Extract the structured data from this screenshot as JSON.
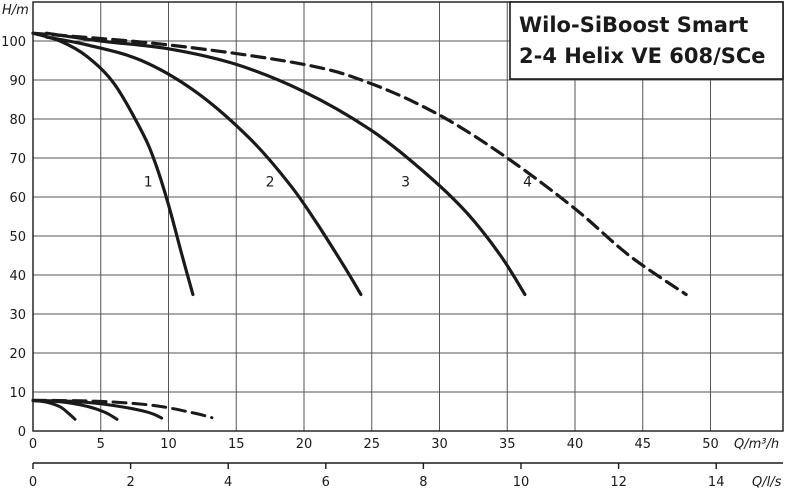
{
  "chart_data": {
    "type": "line",
    "title_lines": [
      "Wilo-SiBoost Smart",
      "2-4 Helix VE 608/SCe"
    ],
    "ylabel": "H/m",
    "xlabel": "Q/m³/h",
    "x2label": "Q/l/s",
    "xlim": [
      0,
      55
    ],
    "ylim": [
      0,
      105
    ],
    "x_ticks": [
      0,
      5,
      10,
      15,
      20,
      25,
      30,
      35,
      40,
      45,
      50
    ],
    "y_ticks": [
      0,
      10,
      20,
      30,
      40,
      50,
      60,
      70,
      80,
      90,
      100
    ],
    "x2_ticks": [
      0,
      2,
      4,
      6,
      8,
      10,
      12,
      14
    ],
    "grid": true,
    "series": [
      {
        "name": "1",
        "style": "solid",
        "x": [
          0,
          2,
          4,
          6,
          8,
          9,
          10,
          11,
          11.8
        ],
        "y": [
          102,
          100,
          96,
          89,
          77,
          69,
          58,
          45,
          35
        ]
      },
      {
        "name": "2",
        "style": "solid",
        "x": [
          1,
          4,
          8,
          12,
          16,
          19,
          21,
          23,
          24.2
        ],
        "y": [
          101,
          99,
          95,
          87,
          75,
          63,
          53,
          42,
          35
        ]
      },
      {
        "name": "3",
        "style": "solid",
        "x": [
          1,
          5,
          10,
          15,
          20,
          25,
          29,
          32,
          34.5,
          36.3
        ],
        "y": [
          102,
          100,
          98,
          94,
          87,
          77,
          66,
          56,
          45,
          35
        ]
      },
      {
        "name": "4",
        "style": "dashed",
        "x": [
          0,
          10,
          20,
          25,
          30,
          35,
          40,
          44,
          48.2
        ],
        "y": [
          102,
          99,
          94,
          89,
          81,
          70,
          57,
          45,
          35
        ]
      }
    ],
    "small_series": [
      {
        "style": "solid",
        "x": [
          0,
          1,
          2,
          2.6,
          3.1
        ],
        "y": [
          7.8,
          7.4,
          6.2,
          4.6,
          3
        ]
      },
      {
        "style": "solid",
        "x": [
          0,
          2,
          4,
          5.3,
          6.2
        ],
        "y": [
          7.8,
          7.5,
          6.3,
          4.8,
          3
        ]
      },
      {
        "style": "solid",
        "x": [
          0,
          3,
          6,
          8.5,
          9.5
        ],
        "y": [
          7.8,
          7.6,
          6.5,
          4.8,
          3.3
        ]
      },
      {
        "style": "dashed",
        "x": [
          0,
          5,
          9,
          12,
          13.2
        ],
        "y": [
          7.9,
          7.6,
          6.5,
          4.5,
          3.4
        ]
      }
    ],
    "curve_labels": [
      {
        "text": "1",
        "x": 8.5,
        "y": 64
      },
      {
        "text": "2",
        "x": 17.5,
        "y": 64
      },
      {
        "text": "3",
        "x": 27.5,
        "y": 64
      },
      {
        "text": "4",
        "x": 36.5,
        "y": 64
      }
    ]
  }
}
